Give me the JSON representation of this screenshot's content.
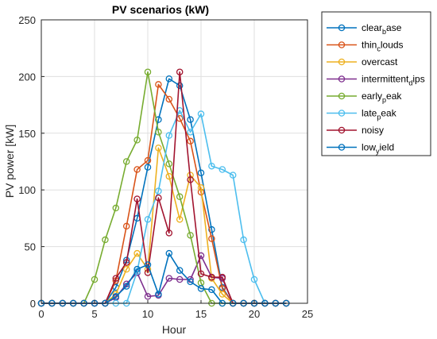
{
  "chart_data": {
    "type": "line",
    "title": "PV scenarios (kW)",
    "xlabel": "Hour",
    "ylabel": "PV power [kW]",
    "xlim": [
      0,
      25
    ],
    "ylim": [
      0,
      250
    ],
    "xticks": [
      0,
      5,
      10,
      15,
      20,
      25
    ],
    "yticks": [
      0,
      50,
      100,
      150,
      200,
      250
    ],
    "grid": true,
    "legend_position": "outside-right",
    "x": [
      0,
      1,
      2,
      3,
      4,
      5,
      6,
      7,
      8,
      9,
      10,
      11,
      12,
      13,
      14,
      15,
      16,
      17,
      18,
      19,
      20,
      21,
      22,
      23
    ],
    "series": [
      {
        "name": "clear_base",
        "color": "#0072BD",
        "values": [
          0,
          0,
          0,
          0,
          0,
          0,
          0,
          14,
          38,
          75,
          120,
          162,
          198,
          192,
          162,
          115,
          65,
          14,
          0,
          0,
          0,
          0,
          0,
          0
        ]
      },
      {
        "name": "thin_clouds",
        "color": "#D95319",
        "values": [
          0,
          0,
          0,
          0,
          0,
          0,
          0,
          20,
          68,
          118,
          126,
          193,
          180,
          163,
          143,
          98,
          57,
          13,
          0,
          0,
          0,
          0,
          0,
          0
        ]
      },
      {
        "name": "overcast",
        "color": "#EDB120",
        "values": [
          0,
          0,
          0,
          0,
          0,
          0,
          0,
          8,
          30,
          44,
          30,
          137,
          112,
          74,
          113,
          102,
          22,
          8,
          0,
          0,
          0,
          0,
          0,
          0
        ]
      },
      {
        "name": "intermittent_dips",
        "color": "#7E2F8E",
        "values": [
          0,
          0,
          0,
          0,
          0,
          0,
          0,
          5,
          17,
          27,
          6,
          7,
          22,
          21,
          21,
          42,
          23,
          22,
          0,
          0,
          0,
          0,
          0,
          0
        ]
      },
      {
        "name": "early_peak",
        "color": "#77AC30",
        "values": [
          0,
          0,
          0,
          0,
          0,
          21,
          56,
          84,
          125,
          144,
          204,
          151,
          123,
          94,
          60,
          18,
          0,
          0,
          0,
          0,
          0,
          0,
          0,
          0
        ]
      },
      {
        "name": "late_peak",
        "color": "#4DBEEE",
        "values": [
          0,
          0,
          0,
          0,
          0,
          0,
          0,
          0,
          0,
          28,
          74,
          99,
          148,
          170,
          151,
          167,
          121,
          118,
          113,
          56,
          21,
          0,
          0,
          0
        ]
      },
      {
        "name": "noisy",
        "color": "#A2142F",
        "values": [
          0,
          0,
          0,
          0,
          0,
          0,
          0,
          22,
          36,
          92,
          27,
          93,
          62,
          204,
          109,
          26,
          23,
          23,
          0,
          0,
          0,
          0,
          0,
          0
        ]
      },
      {
        "name": "low_yield",
        "color": "#0072BD",
        "values": [
          0,
          0,
          0,
          0,
          0,
          0,
          0,
          6,
          15,
          30,
          34,
          8,
          44,
          29,
          19,
          13,
          12,
          0,
          0,
          0,
          0,
          0,
          0,
          0
        ]
      }
    ],
    "legend_entries": [
      {
        "base": "clear",
        "sub": "b",
        "rest": "ase"
      },
      {
        "base": "thin",
        "sub": "c",
        "rest": "louds"
      },
      {
        "base": "overcast",
        "sub": "",
        "rest": ""
      },
      {
        "base": "intermittent",
        "sub": "d",
        "rest": "ips"
      },
      {
        "base": "early",
        "sub": "p",
        "rest": "eak"
      },
      {
        "base": "late",
        "sub": "p",
        "rest": "eak"
      },
      {
        "base": "noisy",
        "sub": "",
        "rest": ""
      },
      {
        "base": "low",
        "sub": "y",
        "rest": "ield"
      }
    ]
  }
}
